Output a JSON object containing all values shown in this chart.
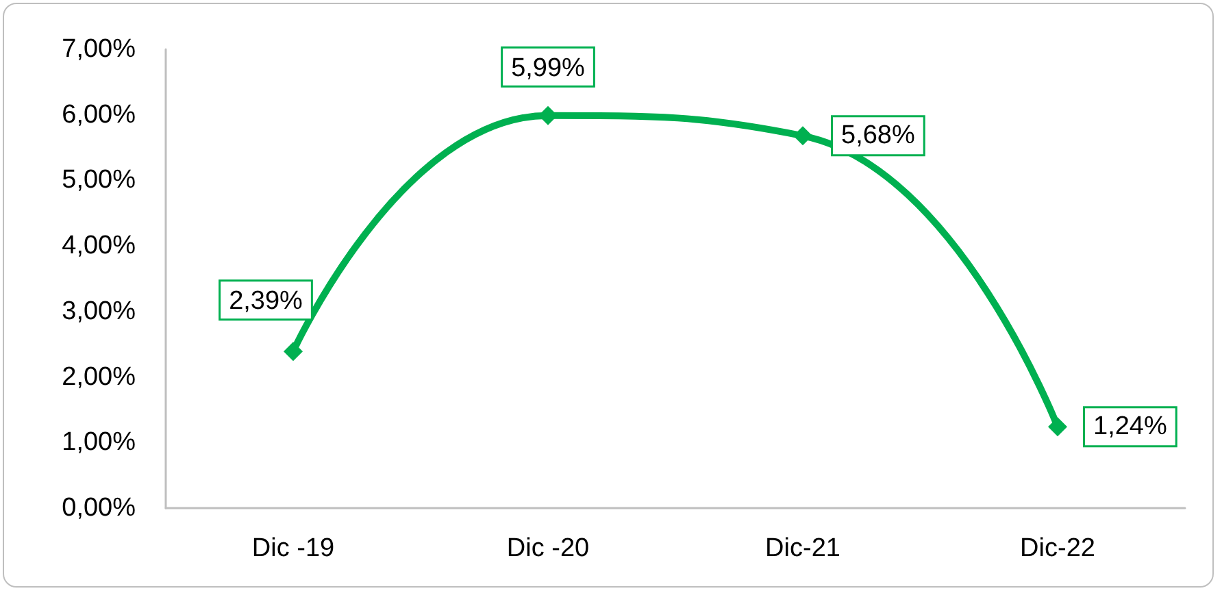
{
  "chart_data": {
    "type": "line",
    "categories": [
      "Dic -19",
      "Dic -20",
      "Dic-21",
      "Dic-22"
    ],
    "series": [
      {
        "color": "#00b050",
        "values": [
          2.39,
          5.99,
          5.68,
          1.24
        ],
        "value_labels": [
          "2,39%",
          "5,99%",
          "5,68%",
          "1,24%"
        ]
      }
    ],
    "ylim": [
      0,
      7
    ],
    "yticks": [
      {
        "value": 0,
        "label": "0,00%"
      },
      {
        "value": 1,
        "label": "1,00%"
      },
      {
        "value": 2,
        "label": "2,00%"
      },
      {
        "value": 3,
        "label": "3,00%"
      },
      {
        "value": 4,
        "label": "4,00%"
      },
      {
        "value": 5,
        "label": "5,00%"
      },
      {
        "value": 6,
        "label": "6,00%"
      },
      {
        "value": 7,
        "label": "7,00%"
      }
    ],
    "grid": false,
    "marker": "diamond",
    "line_style": "solid"
  }
}
